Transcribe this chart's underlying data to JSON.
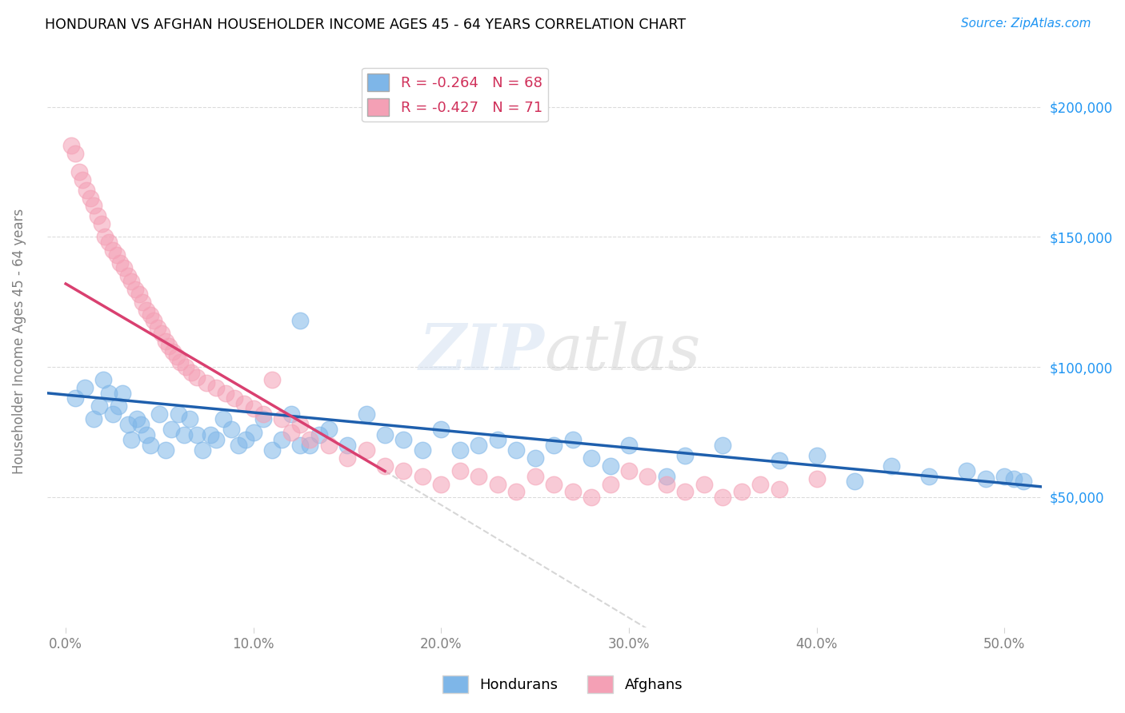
{
  "title": "HONDURAN VS AFGHAN HOUSEHOLDER INCOME AGES 45 - 64 YEARS CORRELATION CHART",
  "source": "Source: ZipAtlas.com",
  "ylabel": "Householder Income Ages 45 - 64 years",
  "xlabel_ticks": [
    "0.0%",
    "10.0%",
    "20.0%",
    "30.0%",
    "40.0%",
    "50.0%"
  ],
  "xlabel_vals": [
    0,
    10,
    20,
    30,
    40,
    50
  ],
  "ytick_labels": [
    "$50,000",
    "$100,000",
    "$150,000",
    "$200,000"
  ],
  "ytick_vals": [
    50000,
    100000,
    150000,
    200000
  ],
  "ylim": [
    0,
    220000
  ],
  "xlim": [
    -1,
    52
  ],
  "legend_blue_r": "-0.264",
  "legend_blue_n": "68",
  "legend_pink_r": "-0.427",
  "legend_pink_n": "71",
  "blue_color": "#7EB6E8",
  "pink_color": "#F4A0B5",
  "line_blue": "#1E5FAD",
  "line_pink": "#D94070",
  "line_gray": "#CCCCCC",
  "honduran_x": [
    0.5,
    1.0,
    1.5,
    1.8,
    2.0,
    2.3,
    2.5,
    2.8,
    3.0,
    3.3,
    3.5,
    3.8,
    4.0,
    4.3,
    4.5,
    5.0,
    5.3,
    5.6,
    6.0,
    6.3,
    6.6,
    7.0,
    7.3,
    7.7,
    8.0,
    8.4,
    8.8,
    9.2,
    9.6,
    10.0,
    10.5,
    11.0,
    11.5,
    12.0,
    12.5,
    12.5,
    13.0,
    13.5,
    14.0,
    15.0,
    16.0,
    17.0,
    18.0,
    19.0,
    20.0,
    21.0,
    22.0,
    23.0,
    24.0,
    25.0,
    26.0,
    27.0,
    28.0,
    29.0,
    30.0,
    32.0,
    33.0,
    35.0,
    38.0,
    40.0,
    42.0,
    44.0,
    46.0,
    48.0,
    49.0,
    50.0,
    50.5,
    51.0
  ],
  "honduran_y": [
    88000,
    92000,
    80000,
    85000,
    95000,
    90000,
    82000,
    85000,
    90000,
    78000,
    72000,
    80000,
    78000,
    74000,
    70000,
    82000,
    68000,
    76000,
    82000,
    74000,
    80000,
    74000,
    68000,
    74000,
    72000,
    80000,
    76000,
    70000,
    72000,
    75000,
    80000,
    68000,
    72000,
    82000,
    118000,
    70000,
    70000,
    74000,
    76000,
    70000,
    82000,
    74000,
    72000,
    68000,
    76000,
    68000,
    70000,
    72000,
    68000,
    65000,
    70000,
    72000,
    65000,
    62000,
    70000,
    58000,
    66000,
    70000,
    64000,
    66000,
    56000,
    62000,
    58000,
    60000,
    57000,
    58000,
    57000,
    56000
  ],
  "afghan_x": [
    0.3,
    0.5,
    0.7,
    0.9,
    1.1,
    1.3,
    1.5,
    1.7,
    1.9,
    2.1,
    2.3,
    2.5,
    2.7,
    2.9,
    3.1,
    3.3,
    3.5,
    3.7,
    3.9,
    4.1,
    4.3,
    4.5,
    4.7,
    4.9,
    5.1,
    5.3,
    5.5,
    5.7,
    5.9,
    6.1,
    6.4,
    6.7,
    7.0,
    7.5,
    8.0,
    8.5,
    9.0,
    9.5,
    10.0,
    10.5,
    11.0,
    11.5,
    12.0,
    12.5,
    13.0,
    14.0,
    15.0,
    16.0,
    17.0,
    18.0,
    19.0,
    20.0,
    21.0,
    22.0,
    23.0,
    24.0,
    25.0,
    26.0,
    27.0,
    28.0,
    29.0,
    30.0,
    31.0,
    32.0,
    33.0,
    34.0,
    35.0,
    36.0,
    37.0,
    38.0,
    40.0
  ],
  "afghan_y": [
    185000,
    182000,
    175000,
    172000,
    168000,
    165000,
    162000,
    158000,
    155000,
    150000,
    148000,
    145000,
    143000,
    140000,
    138000,
    135000,
    133000,
    130000,
    128000,
    125000,
    122000,
    120000,
    118000,
    115000,
    113000,
    110000,
    108000,
    106000,
    104000,
    102000,
    100000,
    98000,
    96000,
    94000,
    92000,
    90000,
    88000,
    86000,
    84000,
    82000,
    95000,
    80000,
    75000,
    78000,
    72000,
    70000,
    65000,
    68000,
    62000,
    60000,
    58000,
    55000,
    60000,
    58000,
    55000,
    52000,
    58000,
    55000,
    52000,
    50000,
    55000,
    60000,
    58000,
    55000,
    52000,
    55000,
    50000,
    52000,
    55000,
    53000,
    57000
  ]
}
